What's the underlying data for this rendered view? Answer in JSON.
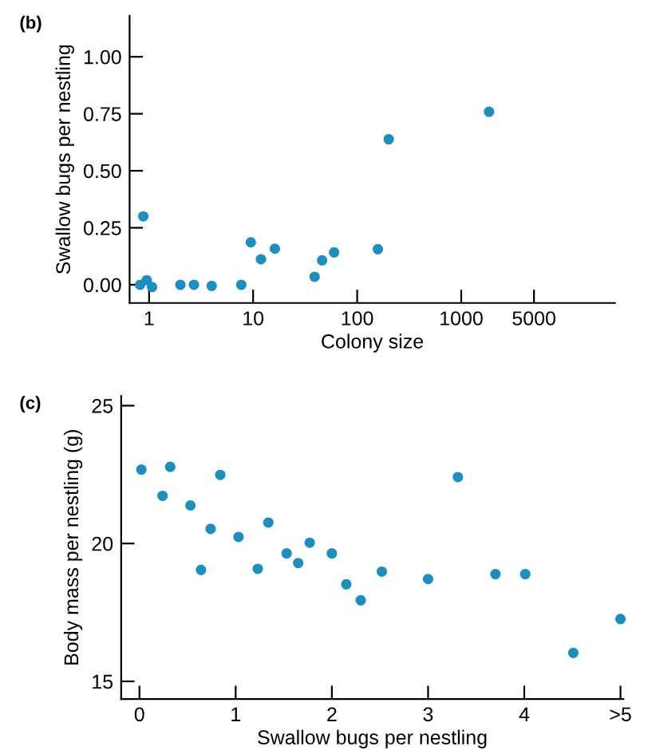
{
  "chart_data": [
    {
      "type": "scatter",
      "xlabel": "Colony size",
      "ylabel": "Swallow bugs per nestling",
      "annotations": [
        "(b)"
      ],
      "log": "x",
      "grid": false,
      "legend": false,
      "marker": "circle",
      "xlim": [
        0.65,
        30000
      ],
      "xticks": [
        1,
        10,
        100,
        1000,
        5000
      ],
      "ylim": [
        -0.08,
        1.18
      ],
      "yticks": [
        {
          "value": 0,
          "label": "0.00"
        },
        {
          "value": 0.25,
          "label": "0.25"
        },
        {
          "value": 0.5,
          "label": "0.50"
        },
        {
          "value": 0.75,
          "label": "0.75"
        },
        {
          "value": 1,
          "label": "1.00"
        }
      ],
      "series": [
        {
          "color": "#1a8fc0",
          "x": [
            0.82,
            0.88,
            0.95,
            1.07,
            2.0,
            2.7,
            4.0,
            7.7,
            9.5,
            11.9,
            16.2,
            39,
            46,
            60,
            158,
            201,
            1850
          ],
          "values": [
            0.0,
            0.3,
            0.02,
            -0.01,
            0.0,
            0.0,
            -0.005,
            0.0,
            0.186,
            0.112,
            0.158,
            0.035,
            0.107,
            0.142,
            0.156,
            0.638,
            0.759
          ]
        }
      ]
    },
    {
      "type": "scatter",
      "xlabel": "Swallow bugs per nestling",
      "ylabel": "Body mass per nestling (g)",
      "annotations": [
        "(c)"
      ],
      "grid": false,
      "legend": false,
      "marker": "circle",
      "xlim": [
        -0.19,
        5.03
      ],
      "xticks": [
        0,
        1,
        2,
        3,
        4,
        {
          "value": 5,
          "label": ">5"
        }
      ],
      "ylim": [
        14.36,
        25.35
      ],
      "yticks": [
        15,
        20,
        25
      ],
      "series": [
        {
          "color": "#1a8fc0",
          "x": [
            0.02,
            0.24,
            0.32,
            0.53,
            0.64,
            0.74,
            0.84,
            1.03,
            1.23,
            1.34,
            1.53,
            1.65,
            1.77,
            2.0,
            2.15,
            2.3,
            2.52,
            3.0,
            3.31,
            3.7,
            4.01,
            4.51,
            5.0
          ],
          "values": [
            22.68,
            21.73,
            22.78,
            21.38,
            19.04,
            20.53,
            22.49,
            20.24,
            19.08,
            20.76,
            19.64,
            19.29,
            20.03,
            19.64,
            18.52,
            17.94,
            18.98,
            18.71,
            22.41,
            18.89,
            18.89,
            16.03,
            17.26
          ]
        }
      ]
    }
  ]
}
